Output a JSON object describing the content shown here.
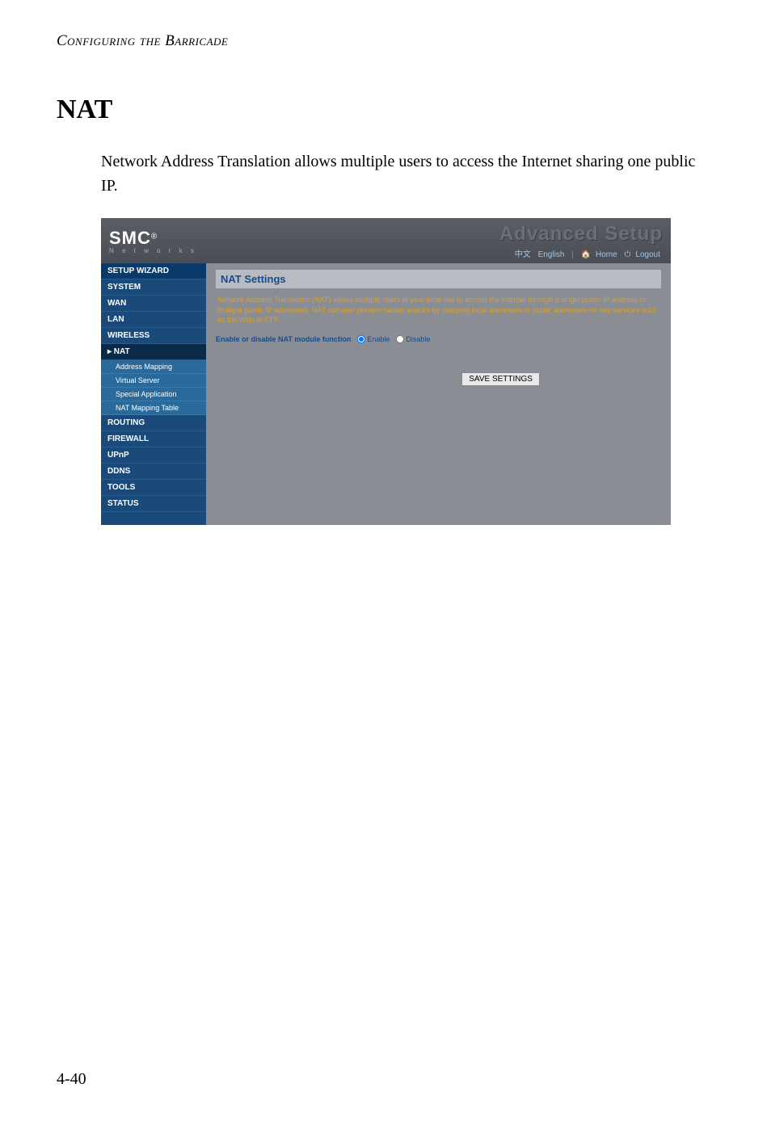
{
  "page_header": "Configuring the Barricade",
  "section_title": "NAT",
  "body_text": "Network Address Translation allows multiple users to access the Internet sharing one public IP.",
  "page_number": "4-40",
  "screenshot": {
    "logo": {
      "main": "SMC",
      "sup": "®",
      "sub": "N e t w o r k s"
    },
    "banner_title": "Advanced Setup",
    "lang_bar": {
      "cn": "中文",
      "en": "English",
      "home": "Home",
      "logout": "Logout"
    },
    "sidebar": {
      "items": [
        {
          "label": "SETUP WIZARD",
          "type": "top"
        },
        {
          "label": "SYSTEM",
          "type": "main"
        },
        {
          "label": "WAN",
          "type": "main"
        },
        {
          "label": "LAN",
          "type": "main"
        },
        {
          "label": "WIRELESS",
          "type": "main"
        },
        {
          "label": "NAT",
          "type": "active"
        },
        {
          "label": "Address Mapping",
          "type": "sub"
        },
        {
          "label": "Virtual Server",
          "type": "sub"
        },
        {
          "label": "Special Application",
          "type": "sub"
        },
        {
          "label": "NAT Mapping Table",
          "type": "sub"
        },
        {
          "label": "ROUTING",
          "type": "main"
        },
        {
          "label": "FIREWALL",
          "type": "main"
        },
        {
          "label": "UPnP",
          "type": "main"
        },
        {
          "label": "DDNS",
          "type": "main"
        },
        {
          "label": "TOOLS",
          "type": "main"
        },
        {
          "label": "STATUS",
          "type": "main"
        }
      ]
    },
    "panel": {
      "title": "NAT Settings",
      "description": "Network Address Translation (NAT) allows multiple users at your local site to access the Internet through a single public IP address or multiple public IP addresses. NAT can also prevent hacker attacks by mapping local addresses to public addresses for key services such as the Web or FTP.",
      "radio_label": "Enable or disable NAT module function",
      "enable_label": "Enable",
      "disable_label": "Disable",
      "save_button": "SAVE SETTINGS"
    }
  }
}
